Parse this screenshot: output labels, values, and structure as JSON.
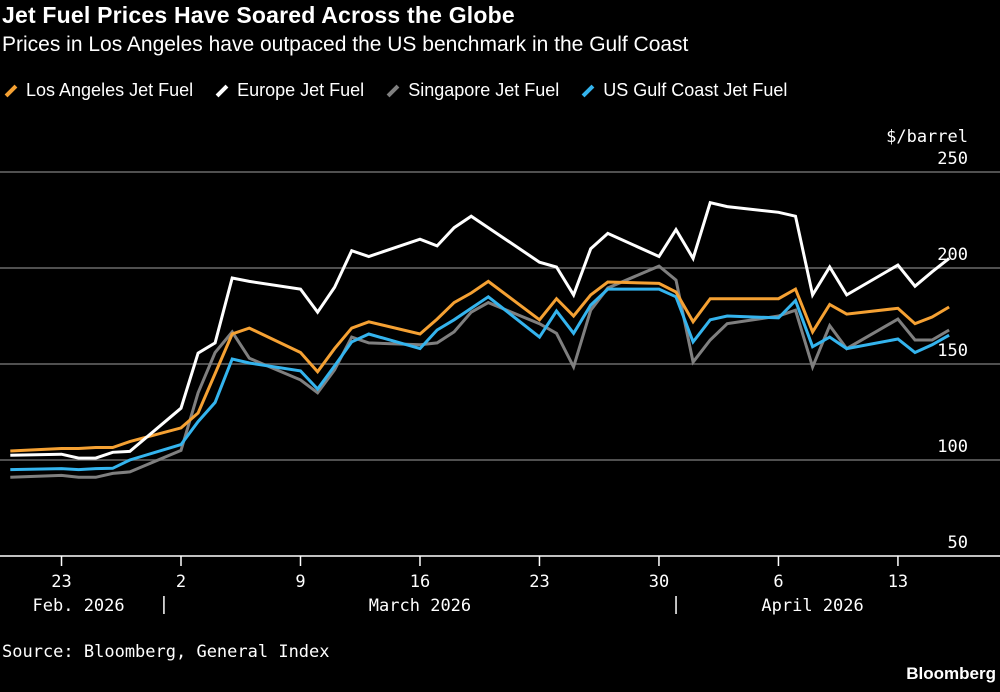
{
  "title": "Jet Fuel Prices Have Soared Across the Globe",
  "subtitle": "Prices in Los Angeles have outpaced the US benchmark in the Gulf Coast",
  "source": "Source: Bloomberg, General Index",
  "brand": "Bloomberg",
  "chart_data": {
    "type": "line",
    "ylabel": "$/barrel",
    "ylim": [
      50,
      250
    ],
    "yticks": [
      50,
      100,
      150,
      200,
      250
    ],
    "grid": true,
    "legend": "top",
    "xticks": [
      {
        "date": "2026-02-23",
        "label": "23"
      },
      {
        "date": "2026-03-02",
        "label": "2"
      },
      {
        "date": "2026-03-09",
        "label": "9"
      },
      {
        "date": "2026-03-16",
        "label": "16"
      },
      {
        "date": "2026-03-23",
        "label": "23"
      },
      {
        "date": "2026-03-30",
        "label": "30"
      },
      {
        "date": "2026-04-06",
        "label": "6"
      },
      {
        "date": "2026-04-13",
        "label": "13"
      }
    ],
    "months": [
      {
        "label": "Feb. 2026",
        "date": "2026-02-24"
      },
      {
        "label": "March 2026",
        "date": "2026-03-16"
      },
      {
        "label": "April 2026",
        "date": "2026-04-08"
      }
    ],
    "month_separators": [
      "2026-03-01",
      "2026-03-31"
    ],
    "x": [
      "2026-02-20",
      "2026-02-23",
      "2026-02-24",
      "2026-02-25",
      "2026-02-26",
      "2026-02-27",
      "2026-03-02",
      "2026-03-03",
      "2026-03-04",
      "2026-03-05",
      "2026-03-06",
      "2026-03-09",
      "2026-03-10",
      "2026-03-11",
      "2026-03-12",
      "2026-03-13",
      "2026-03-16",
      "2026-03-17",
      "2026-03-18",
      "2026-03-19",
      "2026-03-20",
      "2026-03-23",
      "2026-03-24",
      "2026-03-25",
      "2026-03-26",
      "2026-03-27",
      "2026-03-30",
      "2026-03-31",
      "2026-04-01",
      "2026-04-02",
      "2026-04-03",
      "2026-04-06",
      "2026-04-07",
      "2026-04-08",
      "2026-04-09",
      "2026-04-10",
      "2026-04-13",
      "2026-04-14",
      "2026-04-15",
      "2026-04-16"
    ],
    "series": [
      {
        "name": "Los Angeles Jet Fuel",
        "color": "#f5a133",
        "values": [
          104.7,
          106,
          106,
          106.5,
          106.5,
          109.6,
          116.7,
          124.5,
          145,
          165.6,
          168.7,
          156,
          146,
          158,
          168.7,
          172,
          165.6,
          173.4,
          182,
          187,
          193,
          173,
          184,
          175,
          186,
          192.7,
          192,
          187.5,
          172,
          184,
          184,
          184,
          189,
          166.7,
          181,
          176,
          179,
          171,
          174.5,
          179.7
        ]
      },
      {
        "name": "Europe Jet Fuel",
        "color": "#ffffff",
        "values": [
          102.5,
          103,
          101,
          101,
          104,
          104.5,
          127,
          155.7,
          161,
          194.8,
          193,
          189,
          177,
          190,
          209,
          206,
          215,
          211.5,
          221,
          227,
          221,
          203,
          200.5,
          186,
          210,
          218,
          206,
          220,
          205,
          234,
          232,
          229,
          227,
          186,
          200.5,
          186,
          201.5,
          190.5,
          198,
          205
        ]
      },
      {
        "name": "Singapore Jet Fuel",
        "color": "#7f7f7f",
        "values": [
          91,
          92,
          91,
          91,
          93,
          93.8,
          105,
          135,
          156,
          166.7,
          153,
          141.7,
          135,
          147,
          164,
          161,
          160,
          161,
          166.7,
          177,
          182,
          171,
          166,
          148.5,
          178,
          189.6,
          201,
          193.7,
          151,
          162.5,
          171,
          175,
          178,
          148.5,
          170,
          158,
          173.4,
          162.5,
          162.5,
          167.7
        ]
      },
      {
        "name": "US Gulf Coast Jet Fuel",
        "color": "#34b4ee",
        "values": [
          95,
          95.5,
          95,
          95.5,
          95.7,
          100,
          108,
          120,
          130,
          152.6,
          150.5,
          146.4,
          137,
          149,
          161.5,
          165.6,
          158,
          167.7,
          173,
          179,
          185,
          164,
          177.6,
          166,
          180.7,
          189,
          189,
          185,
          161.5,
          173,
          175,
          174,
          183,
          159,
          164,
          158,
          163,
          156,
          160,
          165
        ]
      }
    ]
  }
}
